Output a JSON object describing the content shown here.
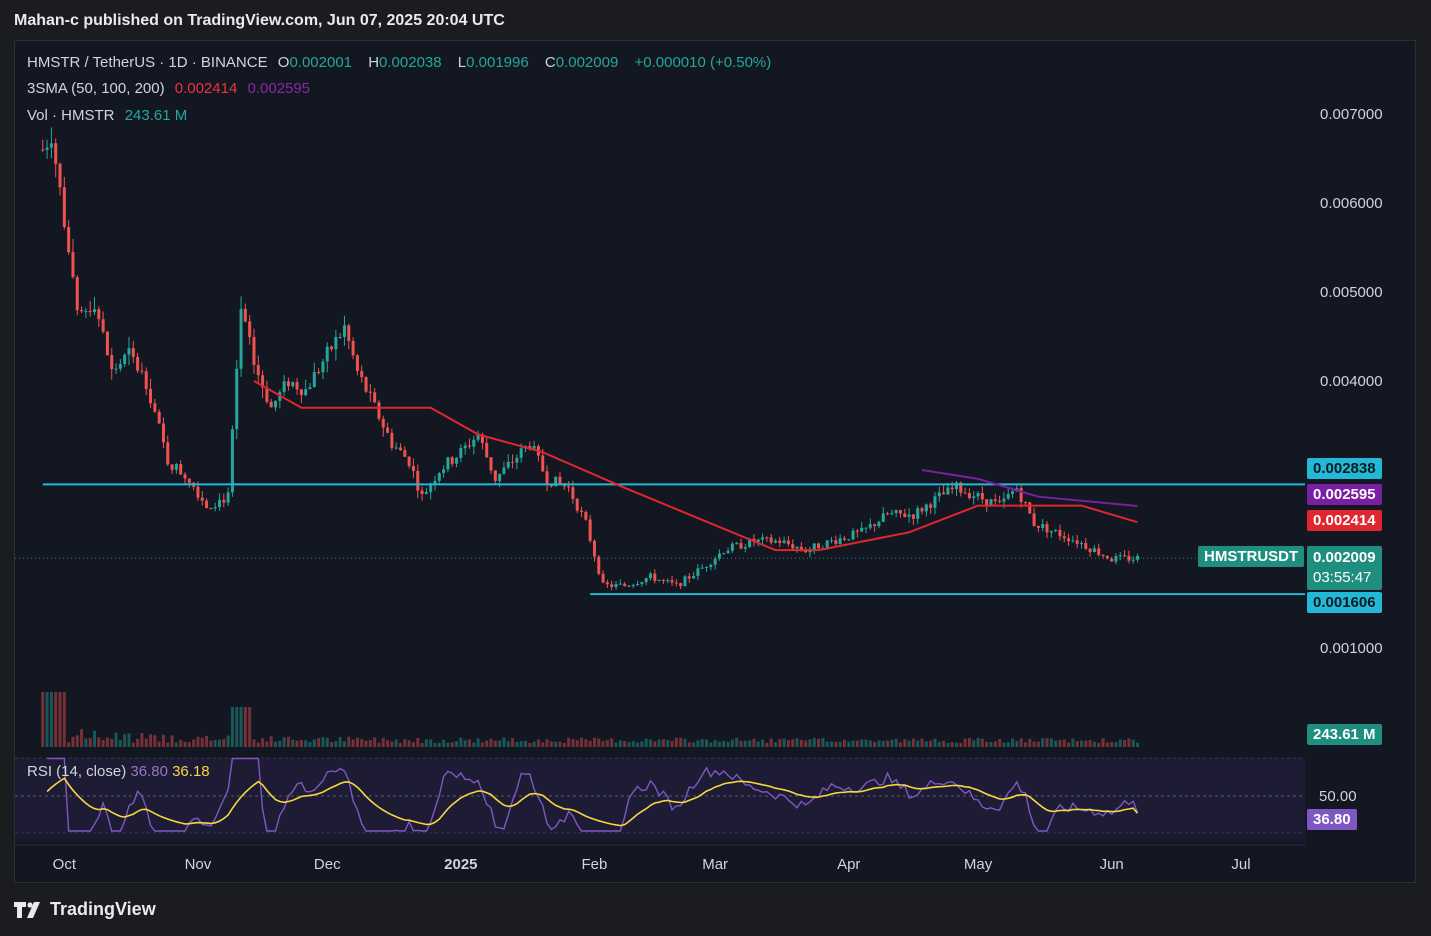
{
  "header": {
    "published": "Mahan-c published on TradingView.com, Jun 07, 2025 20:04 UTC"
  },
  "footer": {
    "brand": "TradingView",
    "logo_icon": "tradingview-logo-icon"
  },
  "legend": {
    "symbol": "HMSTR / TetherUS · 1D · BINANCE",
    "o_label": "O",
    "o_value": "0.002001",
    "h_label": "H",
    "h_value": "0.002038",
    "l_label": "L",
    "l_value": "0.001996",
    "c_label": "C",
    "c_value": "0.002009",
    "change": "+0.000010 (+0.50%)",
    "sma_label": "3SMA (50, 100, 200)",
    "sma50_value": "0.002414",
    "sma100_value": "0.002595",
    "vol_label": "Vol · HMSTR",
    "vol_value": "243.61 M"
  },
  "rsi_legend": {
    "label": "RSI (14, close)",
    "rsi_value": "36.80",
    "ma_value": "36.18"
  },
  "price_tags": {
    "resistance": "0.002838",
    "sma100": "0.002595",
    "sma50": "0.002414",
    "symbol_tag": "HMSTRUSDT",
    "last_price": "0.002009",
    "countdown": "03:55:47",
    "support": "0.001606",
    "volume": "243.61 M",
    "rsi_level": "50.00",
    "rsi_value": "36.80"
  },
  "colors": {
    "up": "#26a69a",
    "down": "#ef5350",
    "sma50": "#e0262e",
    "sma100": "#7b1fa2",
    "hline": "#22b8d6",
    "rsi": "#7e57c2",
    "rsi_ma": "#f5d742",
    "bg": "#131722"
  },
  "chart_data": {
    "type": "candlestick",
    "symbol": "HMSTR / TetherUS",
    "interval": "1D",
    "exchange": "BINANCE",
    "x_ticks": [
      "Oct",
      "Nov",
      "Dec",
      "2025",
      "Feb",
      "Mar",
      "Apr",
      "May",
      "Jun",
      "Jul"
    ],
    "y_ticks": [
      "0.007000",
      "0.006000",
      "0.005000",
      "0.004000",
      "0.001000"
    ],
    "ylim": [
      0.0006,
      0.0073
    ],
    "grid": false,
    "horizontal_lines": [
      {
        "price": 0.002838,
        "from": "2024-09-26",
        "to": "2025-07-31"
      },
      {
        "price": 0.001606,
        "from": "2025-01-31",
        "to": "2025-07-31"
      }
    ],
    "price_path": [
      [
        "2024-09-26",
        0.0066
      ],
      [
        "2024-09-28",
        0.0068
      ],
      [
        "2024-10-01",
        0.0058
      ],
      [
        "2024-10-04",
        0.0047
      ],
      [
        "2024-10-08",
        0.0049
      ],
      [
        "2024-10-12",
        0.0041
      ],
      [
        "2024-10-16",
        0.0043
      ],
      [
        "2024-10-20",
        0.004
      ],
      [
        "2024-10-25",
        0.0031
      ],
      [
        "2024-10-30",
        0.0029
      ],
      [
        "2024-11-03",
        0.0026
      ],
      [
        "2024-11-08",
        0.0027
      ],
      [
        "2024-11-11",
        0.0048
      ],
      [
        "2024-11-14",
        0.0042
      ],
      [
        "2024-11-18",
        0.0037
      ],
      [
        "2024-11-22",
        0.004
      ],
      [
        "2024-11-26",
        0.0039
      ],
      [
        "2024-12-01",
        0.0043
      ],
      [
        "2024-12-05",
        0.0046
      ],
      [
        "2024-12-08",
        0.0041
      ],
      [
        "2024-12-12",
        0.0037
      ],
      [
        "2024-12-16",
        0.0033
      ],
      [
        "2024-12-20",
        0.0031
      ],
      [
        "2024-12-23",
        0.0027
      ],
      [
        "2024-12-27",
        0.003
      ],
      [
        "2025-01-01",
        0.0032
      ],
      [
        "2025-01-05",
        0.0034
      ],
      [
        "2025-01-09",
        0.0029
      ],
      [
        "2025-01-13",
        0.0031
      ],
      [
        "2025-01-17",
        0.0033
      ],
      [
        "2025-01-21",
        0.0029
      ],
      [
        "2025-01-26",
        0.0028
      ],
      [
        "2025-01-30",
        0.0024
      ],
      [
        "2025-02-03",
        0.0017
      ],
      [
        "2025-02-08",
        0.0017
      ],
      [
        "2025-02-14",
        0.0018
      ],
      [
        "2025-02-20",
        0.0017
      ],
      [
        "2025-02-26",
        0.0019
      ],
      [
        "2025-03-03",
        0.0021
      ],
      [
        "2025-03-10",
        0.0022
      ],
      [
        "2025-03-16",
        0.0022
      ],
      [
        "2025-03-22",
        0.0021
      ],
      [
        "2025-03-28",
        0.0022
      ],
      [
        "2025-04-04",
        0.0023
      ],
      [
        "2025-04-10",
        0.0025
      ],
      [
        "2025-04-16",
        0.0025
      ],
      [
        "2025-04-22",
        0.0027
      ],
      [
        "2025-04-26",
        0.0028
      ],
      [
        "2025-05-01",
        0.0027
      ],
      [
        "2025-05-06",
        0.0026
      ],
      [
        "2025-05-10",
        0.0028
      ],
      [
        "2025-05-14",
        0.0024
      ],
      [
        "2025-05-19",
        0.0023
      ],
      [
        "2025-05-24",
        0.0022
      ],
      [
        "2025-05-28",
        0.0021
      ],
      [
        "2025-06-01",
        0.002
      ],
      [
        "2025-06-07",
        0.002009
      ]
    ],
    "series": [
      {
        "name": "3SMA 50",
        "values": [
          [
            "2024-11-14",
            0.004
          ],
          [
            "2024-11-25",
            0.0037
          ],
          [
            "2024-12-08",
            0.0037
          ],
          [
            "2024-12-25",
            0.0037
          ],
          [
            "2025-01-05",
            0.0034
          ],
          [
            "2025-01-20",
            0.0032
          ],
          [
            "2025-02-08",
            0.0028
          ],
          [
            "2025-02-28",
            0.0024
          ],
          [
            "2025-03-15",
            0.0021
          ],
          [
            "2025-03-25",
            0.0021
          ],
          [
            "2025-04-15",
            0.0023
          ],
          [
            "2025-05-01",
            0.0026
          ],
          [
            "2025-05-15",
            0.0026
          ],
          [
            "2025-05-25",
            0.0026
          ],
          [
            "2025-06-07",
            0.002414
          ]
        ]
      },
      {
        "name": "3SMA 100",
        "values": [
          [
            "2025-04-18",
            0.003
          ],
          [
            "2025-05-01",
            0.0029
          ],
          [
            "2025-05-15",
            0.0027
          ],
          [
            "2025-06-07",
            0.002595
          ]
        ]
      }
    ],
    "volume_last": "243.61 M",
    "rsi": {
      "period": 14,
      "last": 36.8,
      "ma_last": 36.18,
      "level": 50.0
    },
    "last_close": 0.002009
  }
}
